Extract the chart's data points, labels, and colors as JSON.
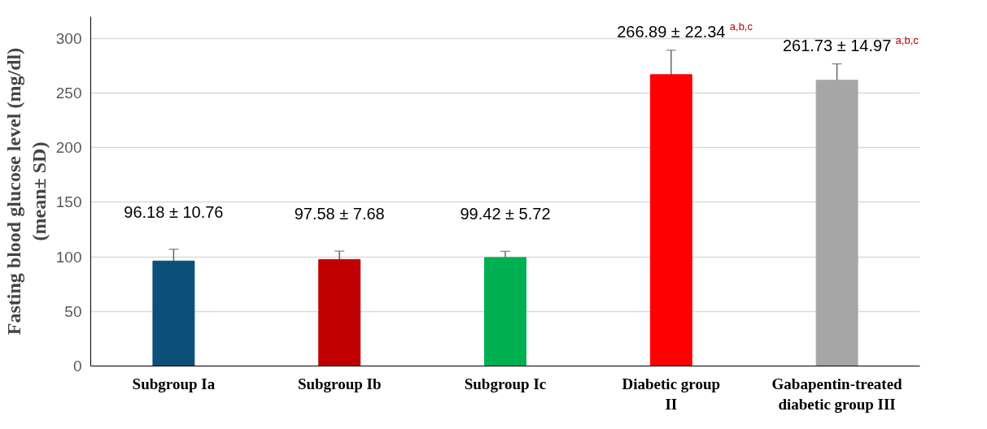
{
  "chart_data": {
    "type": "bar",
    "ylabel": "Fasting blood glucose level (mg/dl)\n(mean± SD)",
    "categories": [
      "Subgroup Ia",
      "Subgroup Ib",
      "Subgroup Ic",
      "Diabetic group\nII",
      "Gabapentin-treated\ndiabetic group III"
    ],
    "values": [
      96.18,
      97.58,
      99.42,
      266.89,
      261.73
    ],
    "errors": [
      10.76,
      7.68,
      5.72,
      22.34,
      14.97
    ],
    "colors": [
      "#0b5078",
      "#c00000",
      "#00b050",
      "#ff0000",
      "#a6a6a6"
    ],
    "value_labels": [
      "96.18 ± 10.76",
      "97.58 ± 7.68",
      "99.42 ± 5.72",
      "266.89 ± 22.34 $^{a,b,c}$",
      "261.73 ± 14.97 $^{a,b,c}$"
    ],
    "ylim": [
      0,
      320
    ],
    "yticks": [
      0,
      50,
      100,
      150,
      200,
      250,
      300
    ],
    "grid": "y"
  }
}
